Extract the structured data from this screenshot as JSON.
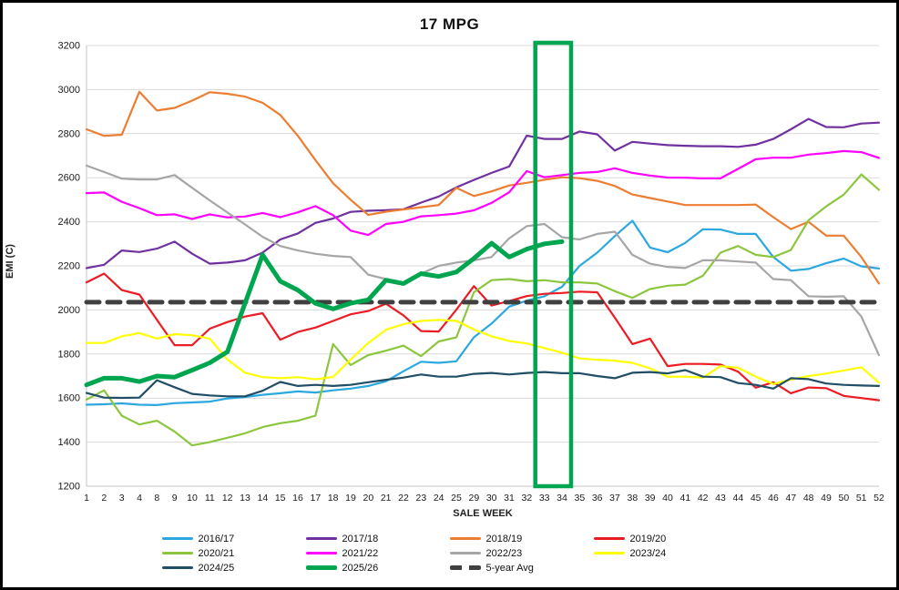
{
  "window": {
    "border_color": "#000000",
    "background": "#FFFFFF"
  },
  "chart_data": {
    "type": "line",
    "title": "17 MPG",
    "xlabel": "SALE WEEK",
    "ylabel": "EMI (C)",
    "ylim": [
      1200,
      3200
    ],
    "ytick_step": 200,
    "ytick_labels": [
      "1200",
      "1400",
      "1600",
      "1800",
      "2000",
      "2200",
      "2400",
      "2600",
      "2800",
      "3000",
      "3200"
    ],
    "grid": "horizontal-only",
    "legend_position": "bottom",
    "gridline_color": "#D9D9D9",
    "plot_border_color": "#C6C6C6",
    "tick_label_color": "#1a1a1a",
    "highlight_box": {
      "start_week": "33",
      "end_week": "34",
      "color": "#00A64F"
    },
    "categories": [
      "1",
      "2",
      "3",
      "4",
      "8",
      "9",
      "10",
      "11",
      "12",
      "13",
      "14",
      "15",
      "16",
      "17",
      "18",
      "19",
      "20",
      "21",
      "22",
      "23",
      "24",
      "25",
      "29",
      "30",
      "31",
      "32",
      "33",
      "34",
      "35",
      "36",
      "37",
      "38",
      "39",
      "40",
      "41",
      "42",
      "43",
      "44",
      "45",
      "46",
      "47",
      "48",
      "49",
      "50",
      "51",
      "52"
    ],
    "series": [
      {
        "name": "2016/17",
        "color": "#2CA8E0",
        "width": 2.2,
        "values": [
          1570,
          1572,
          1576,
          1570,
          1568,
          1577,
          1580,
          1584,
          1598,
          1605,
          1615,
          1622,
          1630,
          1625,
          1635,
          1643,
          1655,
          1676,
          1722,
          1765,
          1760,
          1767,
          1876,
          1938,
          2015,
          2042,
          2062,
          2105,
          2200,
          2260,
          2335,
          2405,
          2283,
          2262,
          2304,
          2366,
          2365,
          2345,
          2345,
          2240,
          2178,
          2186,
          2212,
          2233,
          2198,
          2188
        ]
      },
      {
        "name": "2017/18",
        "color": "#7030A0",
        "width": 2.2,
        "values": [
          2190,
          2205,
          2270,
          2263,
          2278,
          2310,
          2255,
          2210,
          2215,
          2225,
          2260,
          2320,
          2347,
          2395,
          2415,
          2445,
          2450,
          2453,
          2457,
          2487,
          2515,
          2556,
          2590,
          2622,
          2651,
          2791,
          2776,
          2776,
          2810,
          2797,
          2723,
          2763,
          2755,
          2748,
          2745,
          2743,
          2743,
          2740,
          2750,
          2776,
          2820,
          2867,
          2830,
          2829,
          2846,
          2850
        ]
      },
      {
        "name": "2018/19",
        "color": "#ED7D31",
        "width": 2.2,
        "values": [
          2820,
          2790,
          2795,
          2990,
          2905,
          2917,
          2950,
          2988,
          2981,
          2968,
          2940,
          2885,
          2790,
          2680,
          2575,
          2500,
          2431,
          2446,
          2456,
          2466,
          2476,
          2554,
          2517,
          2538,
          2565,
          2577,
          2591,
          2602,
          2598,
          2586,
          2563,
          2524,
          2508,
          2492,
          2476,
          2476,
          2476,
          2476,
          2478,
          2421,
          2367,
          2400,
          2337,
          2337,
          2240,
          2120
        ]
      },
      {
        "name": "2019/20",
        "color": "#EC1C24",
        "width": 2.2,
        "values": [
          2125,
          2165,
          2090,
          2070,
          1955,
          1840,
          1840,
          1915,
          1945,
          1970,
          1985,
          1865,
          1900,
          1920,
          1950,
          1980,
          1995,
          2028,
          1975,
          1904,
          1902,
          2001,
          2108,
          2020,
          2040,
          2063,
          2073,
          2077,
          2083,
          2080,
          1965,
          1845,
          1870,
          1745,
          1755,
          1755,
          1752,
          1720,
          1647,
          1672,
          1622,
          1648,
          1645,
          1610,
          1600,
          1590
        ]
      },
      {
        "name": "2020/21",
        "color": "#8CC63F",
        "width": 2.2,
        "values": [
          1593,
          1635,
          1520,
          1480,
          1497,
          1448,
          1385,
          1400,
          1420,
          1440,
          1468,
          1486,
          1497,
          1520,
          1845,
          1750,
          1795,
          1815,
          1838,
          1790,
          1857,
          1875,
          2080,
          2135,
          2140,
          2130,
          2135,
          2125,
          2125,
          2120,
          2085,
          2055,
          2095,
          2110,
          2115,
          2155,
          2260,
          2290,
          2250,
          2240,
          2272,
          2407,
          2470,
          2523,
          2615,
          2545
        ]
      },
      {
        "name": "2021/22",
        "color": "#FF00FF",
        "width": 2.2,
        "values": [
          2530,
          2533,
          2491,
          2462,
          2430,
          2434,
          2413,
          2434,
          2420,
          2424,
          2440,
          2421,
          2443,
          2471,
          2430,
          2360,
          2340,
          2390,
          2400,
          2425,
          2430,
          2437,
          2452,
          2486,
          2534,
          2630,
          2602,
          2612,
          2622,
          2626,
          2643,
          2622,
          2610,
          2601,
          2600,
          2597,
          2597,
          2640,
          2684,
          2691,
          2691,
          2705,
          2712,
          2721,
          2716,
          2690
        ]
      },
      {
        "name": "2022/23",
        "color": "#A6A6A6",
        "width": 2.2,
        "values": [
          2655,
          2626,
          2596,
          2592,
          2592,
          2612,
          2554,
          2497,
          2442,
          2388,
          2332,
          2290,
          2270,
          2255,
          2245,
          2240,
          2160,
          2140,
          2120,
          2165,
          2200,
          2215,
          2225,
          2240,
          2325,
          2380,
          2390,
          2330,
          2320,
          2345,
          2355,
          2250,
          2210,
          2195,
          2190,
          2225,
          2225,
          2220,
          2215,
          2140,
          2135,
          2062,
          2060,
          2062,
          1970,
          1795
        ]
      },
      {
        "name": "2023/24",
        "color": "#FFFF00",
        "width": 2.2,
        "values": [
          1850,
          1850,
          1880,
          1895,
          1870,
          1890,
          1885,
          1870,
          1775,
          1715,
          1695,
          1690,
          1695,
          1685,
          1696,
          1775,
          1850,
          1910,
          1935,
          1950,
          1955,
          1950,
          1911,
          1880,
          1859,
          1848,
          1827,
          1806,
          1780,
          1774,
          1770,
          1760,
          1735,
          1697,
          1697,
          1693,
          1745,
          1738,
          1697,
          1664,
          1684,
          1700,
          1711,
          1725,
          1740,
          1670
        ]
      },
      {
        "name": "2024/25",
        "color": "#1F4E66",
        "width": 2.2,
        "values": [
          1623,
          1602,
          1601,
          1602,
          1681,
          1649,
          1619,
          1612,
          1608,
          1608,
          1633,
          1673,
          1655,
          1660,
          1655,
          1660,
          1672,
          1683,
          1693,
          1707,
          1697,
          1697,
          1710,
          1714,
          1707,
          1714,
          1718,
          1713,
          1713,
          1700,
          1690,
          1715,
          1718,
          1712,
          1727,
          1697,
          1695,
          1668,
          1660,
          1643,
          1690,
          1686,
          1666,
          1660,
          1657,
          1655
        ]
      },
      {
        "name": "2025/26",
        "color": "#00A64F",
        "width": 5,
        "values": [
          1660,
          1690,
          1690,
          1675,
          1700,
          1695,
          1727,
          1760,
          1810,
          2030,
          2250,
          2130,
          2090,
          2030,
          2005,
          2030,
          2046,
          2135,
          2120,
          2165,
          2152,
          2172,
          2234,
          2303,
          2240,
          2276,
          2300,
          2310,
          null,
          null,
          null,
          null,
          null,
          null,
          null,
          null,
          null,
          null,
          null,
          null,
          null,
          null,
          null,
          null,
          null,
          null
        ]
      },
      {
        "name": "5-year Avg",
        "color": "#404040",
        "width": 5,
        "dash": [
          14,
          9
        ],
        "constant": 2035,
        "values": null
      }
    ]
  }
}
